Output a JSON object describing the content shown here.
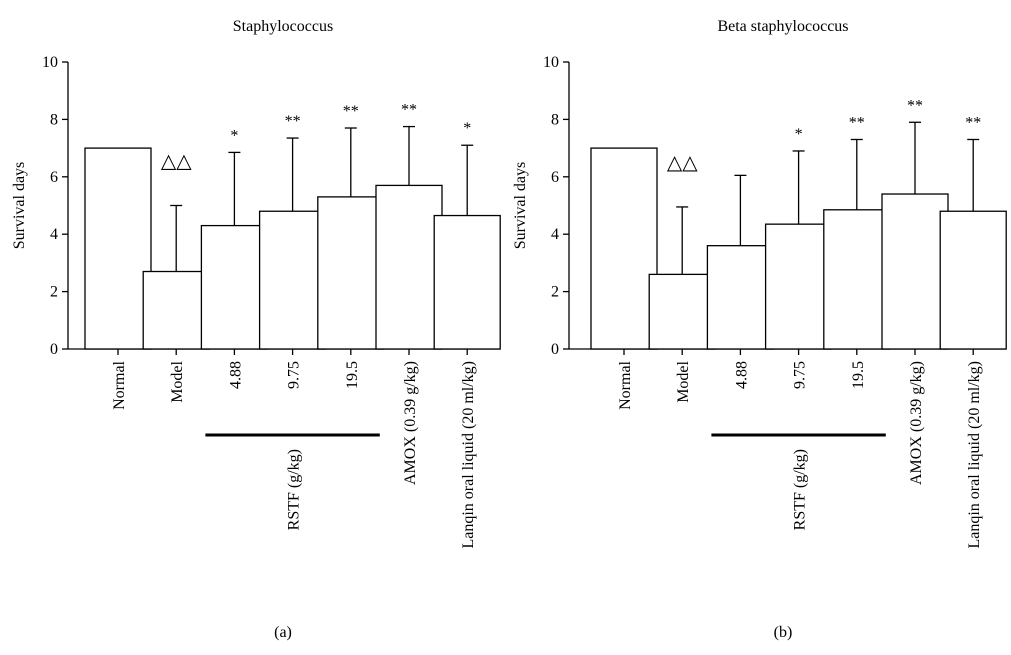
{
  "chart_data": [
    {
      "type": "bar",
      "panel_label": "(a)",
      "title": "Staphylococcus",
      "ylabel": "Survival days",
      "ylim": [
        0,
        10
      ],
      "yticks": [
        "0",
        "2",
        "4",
        "6",
        "8",
        "10"
      ],
      "categories": [
        "Normal",
        "Model",
        "4.88",
        "9.75",
        "19.5",
        "AMOX (0.39 g/kg)",
        "Lanqin oral liquid (20 ml/kg)"
      ],
      "values": [
        7.0,
        2.7,
        4.3,
        4.8,
        5.3,
        5.7,
        4.65
      ],
      "error_upper": [
        7.0,
        5.0,
        6.85,
        7.35,
        7.7,
        7.75,
        7.1
      ],
      "annotations": [
        "",
        "△△",
        "*",
        "**",
        "**",
        "**",
        "*"
      ],
      "group_label": "RSTF (g/kg)",
      "group_span": [
        2,
        4
      ],
      "grid": false
    },
    {
      "type": "bar",
      "panel_label": "(b)",
      "title": "Beta staphylococcus",
      "ylabel": "Survival days",
      "ylim": [
        0,
        10
      ],
      "yticks": [
        "0",
        "2",
        "4",
        "6",
        "8",
        "10"
      ],
      "categories": [
        "Normal",
        "Model",
        "4.88",
        "9.75",
        "19.5",
        "AMOX (0.39 g/kg)",
        "Lanqin oral liquid (20 ml/kg)"
      ],
      "values": [
        7.0,
        2.6,
        3.6,
        4.35,
        4.85,
        5.4,
        4.8
      ],
      "error_upper": [
        7.0,
        4.95,
        6.05,
        6.9,
        7.3,
        7.9,
        7.3
      ],
      "annotations": [
        "",
        "△△",
        "",
        "*",
        "**",
        "**",
        "**"
      ],
      "group_label": "RSTF (g/kg)",
      "group_span": [
        2,
        4
      ],
      "grid": false
    }
  ]
}
